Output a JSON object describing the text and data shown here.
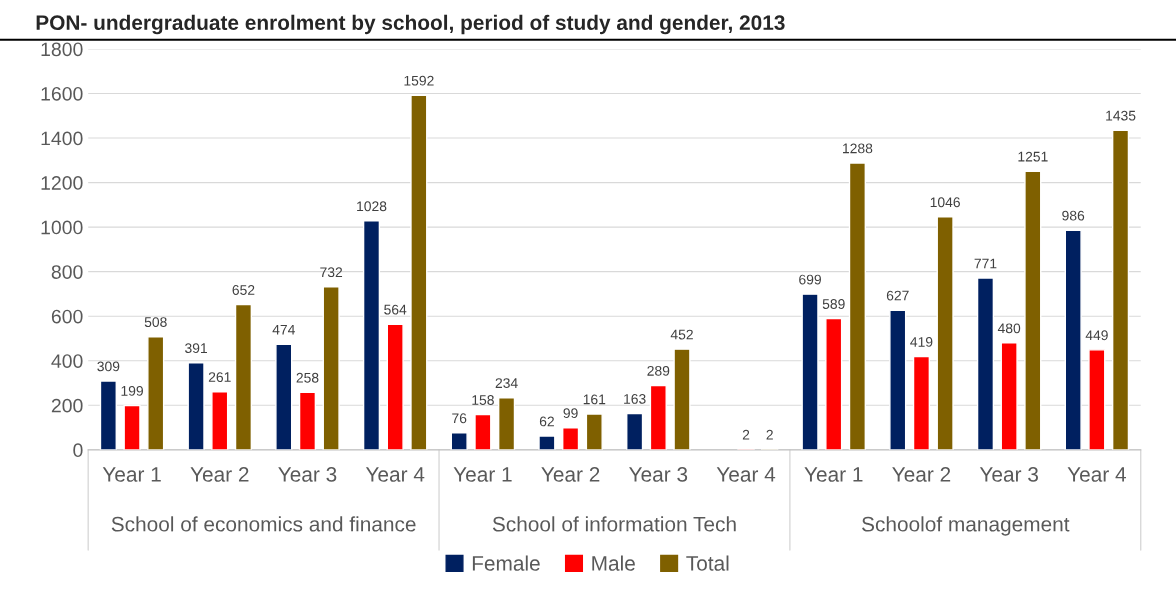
{
  "chart_data": {
    "type": "bar",
    "title": "PON- undergraduate enrolment by school, period of study and gender, 2013",
    "categories": [
      "Year 1",
      "Year 2",
      "Year 3",
      "Year 4",
      "Year 1",
      "Year 2",
      "Year 3",
      "Year 4",
      "Year 1",
      "Year 2",
      "Year 3",
      "Year 4"
    ],
    "series": [
      {
        "name": "Female",
        "color": "#002060",
        "values": [
          309,
          391,
          474,
          1028,
          76,
          62,
          163,
          null,
          699,
          627,
          771,
          986
        ]
      },
      {
        "name": "Male",
        "color": "#ff0000",
        "values": [
          199,
          261,
          258,
          564,
          158,
          99,
          289,
          2,
          589,
          419,
          480,
          449
        ]
      },
      {
        "name": "Total",
        "color": "#7f6000",
        "values": [
          508,
          652,
          732,
          1592,
          234,
          161,
          452,
          2,
          1288,
          1046,
          1251,
          1435
        ]
      }
    ],
    "annotations": [
      "School of economics and finance",
      "School of information Tech",
      "Schoolof management"
    ],
    "ylim": [
      0,
      1800
    ],
    "yticks": [
      0,
      200,
      400,
      600,
      800,
      1000,
      1200,
      1400,
      1600,
      1800
    ],
    "grid": "y",
    "data_labels": true,
    "legend": "bottom"
  }
}
